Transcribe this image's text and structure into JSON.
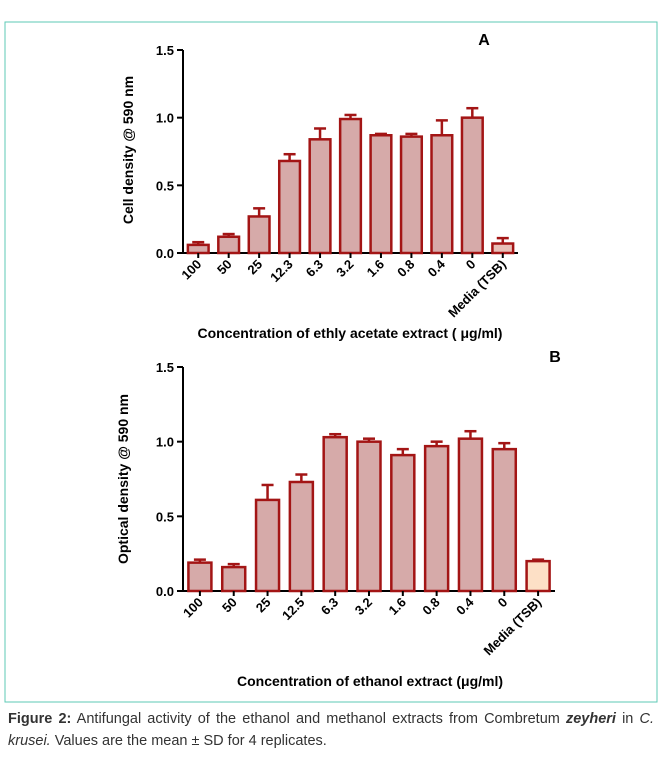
{
  "chart_data": [
    {
      "type": "bar",
      "title": "A",
      "ylabel": "Cell density @ 590 nm",
      "xlabel": "Concentration of ethly acetate extract ( μg/ml)",
      "categories": [
        "100",
        "50",
        "25",
        "12.3",
        "6.3",
        "3.2",
        "1.6",
        "0.8",
        "0.4",
        "0",
        "Media (TSB)"
      ],
      "values": [
        0.06,
        0.12,
        0.27,
        0.68,
        0.84,
        0.99,
        0.87,
        0.86,
        0.87,
        1.0,
        0.07
      ],
      "errors": [
        0.02,
        0.02,
        0.06,
        0.05,
        0.08,
        0.03,
        0.01,
        0.02,
        0.11,
        0.07,
        0.04
      ],
      "colors": [
        "#d6aaa9",
        "#d6aaa9",
        "#d6aaa9",
        "#d6aaa9",
        "#d6aaa9",
        "#d6aaa9",
        "#d6aaa9",
        "#d6aaa9",
        "#d6aaa9",
        "#d6aaa9",
        "#e8c0b8"
      ],
      "edge_color": "#a31515",
      "ylim": [
        0,
        1.5
      ],
      "yticks": [
        {
          "value": 0,
          "label": "0.0"
        },
        0.5,
        {
          "value": 1,
          "label": "1.0"
        },
        1.5
      ]
    },
    {
      "type": "bar",
      "title": "B",
      "ylabel": "Optical density @ 590 nm",
      "xlabel": "Concentration of ethanol extract (μg/ml)",
      "categories": [
        "100",
        "50",
        "25",
        "12.5",
        "6.3",
        "3.2",
        "1.6",
        "0.8",
        "0.4",
        "0",
        "Media (TSB)"
      ],
      "values": [
        0.19,
        0.16,
        0.61,
        0.73,
        1.03,
        1.0,
        0.91,
        0.97,
        1.02,
        0.95,
        0.2
      ],
      "errors": [
        0.02,
        0.02,
        0.1,
        0.05,
        0.02,
        0.02,
        0.04,
        0.03,
        0.05,
        0.04,
        0.01
      ],
      "colors": [
        "#d6aaa9",
        "#d6aaa9",
        "#d6aaa9",
        "#d6aaa9",
        "#d6aaa9",
        "#d6aaa9",
        "#d6aaa9",
        "#d6aaa9",
        "#d6aaa9",
        "#d6aaa9",
        "#fde0c6"
      ],
      "edge_color": "#a31515",
      "ylim": [
        0,
        1.5
      ],
      "yticks": [
        {
          "value": 0,
          "label": "0.0"
        },
        0.5,
        {
          "value": 1,
          "label": "1.0"
        },
        1.5
      ]
    }
  ],
  "caption": {
    "label": "Figure 2:",
    "text_1": " Antifungal activity of the ethanol and methanol extracts from Combretum ",
    "species": "zeyheri",
    "text_2": " in ",
    "organism": "C. krusei.",
    "text_3": "  Values are the mean ± SD for 4 replicates."
  }
}
